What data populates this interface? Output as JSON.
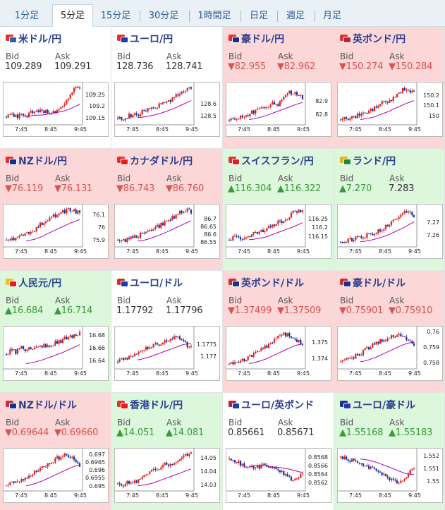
{
  "tabs": [
    {
      "label": "1分足",
      "active": false
    },
    {
      "label": "5分足",
      "active": true
    },
    {
      "label": "15分足",
      "active": false
    },
    {
      "label": "30分足",
      "active": false
    },
    {
      "label": "1時間足",
      "active": false
    },
    {
      "label": "日足",
      "active": false
    },
    {
      "label": "週足",
      "active": false
    },
    {
      "label": "月足",
      "active": false
    }
  ],
  "labels": {
    "bid": "Bid",
    "ask": "Ask"
  },
  "colors": {
    "up_bg": "#dcf7dc",
    "down_bg": "#fcd7d7",
    "up_text": "#3a9a3a",
    "down_text": "#d9534f",
    "bull_candle": "#e02020",
    "bear_candle": "#1a2f9a",
    "ma_line": "#b000b0"
  },
  "pairs": [
    {
      "name": "米ドル/円",
      "flag": "us-jp-flag-icon",
      "bg": "white",
      "bid": "109.289",
      "ask": "109.291",
      "bid_dir": "",
      "ask_dir": "",
      "chart_data": {
        "type": "candlestick",
        "x_ticks": [
          "7:45",
          "8:45",
          "9:45"
        ],
        "y_ticks": [
          "109.25",
          "109.2",
          "109.15"
        ],
        "ylim": [
          109.13,
          109.29
        ],
        "trend": [
          0.18,
          0.2,
          0.17,
          0.22,
          0.2,
          0.3,
          0.28,
          0.35,
          0.3,
          0.25,
          0.3,
          0.45,
          0.55,
          0.75,
          0.9,
          0.95
        ],
        "ma": [
          0.2,
          0.2,
          0.21,
          0.22,
          0.22,
          0.24,
          0.26,
          0.28,
          0.3,
          0.32,
          0.36,
          0.4,
          0.45,
          0.5
        ]
      }
    },
    {
      "name": "ユーロ/円",
      "flag": "eu-jp-flag-icon",
      "bg": "white",
      "bid": "128.736",
      "ask": "128.741",
      "bid_dir": "",
      "ask_dir": "",
      "chart_data": {
        "type": "candlestick",
        "x_ticks": [
          "7:45",
          "8:45",
          "9:45"
        ],
        "y_ticks": [
          "128.6",
          "128.5"
        ],
        "ylim": [
          128.44,
          128.76
        ],
        "trend": [
          0.15,
          0.12,
          0.18,
          0.22,
          0.2,
          0.3,
          0.35,
          0.4,
          0.45,
          0.5,
          0.55,
          0.65,
          0.75,
          0.85,
          0.9,
          0.95
        ],
        "ma": [
          0.15,
          0.16,
          0.18,
          0.2,
          0.22,
          0.25,
          0.28,
          0.32,
          0.36,
          0.4,
          0.45,
          0.5,
          0.55,
          0.6
        ]
      }
    },
    {
      "name": "豪ドル/円",
      "flag": "au-jp-flag-icon",
      "bg": "red",
      "bid": "▼82.955",
      "ask": "▼82.962",
      "bid_dir": "down",
      "ask_dir": "down",
      "chart_data": {
        "type": "candlestick",
        "x_ticks": [
          "7:45",
          "8:45",
          "9:45"
        ],
        "y_ticks": [
          "82.9",
          "82.8"
        ],
        "ylim": [
          82.74,
          83.02
        ],
        "trend": [
          0.1,
          0.12,
          0.15,
          0.2,
          0.25,
          0.3,
          0.35,
          0.4,
          0.45,
          0.55,
          0.5,
          0.6,
          0.85,
          0.8,
          0.75,
          0.7
        ],
        "ma": [
          0.1,
          0.12,
          0.14,
          0.17,
          0.2,
          0.24,
          0.28,
          0.32,
          0.36,
          0.4,
          0.44,
          0.48,
          0.52,
          0.55
        ]
      }
    },
    {
      "name": "英ポンド/円",
      "flag": "gb-jp-flag-icon",
      "bg": "red",
      "bid": "▼150.274",
      "ask": "▼150.284",
      "bid_dir": "down",
      "ask_dir": "down",
      "chart_data": {
        "type": "candlestick",
        "x_ticks": [
          "7:45",
          "8:45",
          "9:45"
        ],
        "y_ticks": [
          "150.2",
          "150.1",
          "150"
        ],
        "ylim": [
          149.93,
          150.3
        ],
        "trend": [
          0.1,
          0.12,
          0.15,
          0.2,
          0.22,
          0.3,
          0.35,
          0.4,
          0.5,
          0.55,
          0.6,
          0.7,
          0.8,
          0.9,
          0.85,
          0.8
        ],
        "ma": [
          0.1,
          0.12,
          0.14,
          0.16,
          0.2,
          0.24,
          0.28,
          0.32,
          0.38,
          0.42,
          0.47,
          0.52,
          0.56,
          0.6
        ]
      }
    },
    {
      "name": "NZドル/円",
      "flag": "nz-jp-flag-icon",
      "bg": "red",
      "bid": "▼76.119",
      "ask": "▼76.131",
      "bid_dir": "down",
      "ask_dir": "down",
      "chart_data": {
        "type": "candlestick",
        "x_ticks": [
          "7:45",
          "8:45",
          "9:45"
        ],
        "y_ticks": [
          "76.1",
          "76",
          "75.9"
        ],
        "ylim": [
          75.86,
          76.16
        ],
        "trend": [
          0.15,
          0.18,
          0.2,
          0.25,
          0.3,
          0.35,
          0.45,
          0.55,
          0.6,
          0.7,
          0.8,
          0.85,
          0.9,
          0.95,
          0.9,
          0.85
        ],
        "ma": [
          0.12,
          0.14,
          0.16,
          0.2,
          0.24,
          0.3,
          0.35,
          0.4,
          0.45,
          0.5,
          0.55,
          0.6,
          0.64,
          0.68
        ]
      }
    },
    {
      "name": "カナダドル/円",
      "flag": "ca-jp-flag-icon",
      "bg": "red",
      "bid": "▼86.743",
      "ask": "▼86.760",
      "bid_dir": "down",
      "ask_dir": "down",
      "chart_data": {
        "type": "candlestick",
        "x_ticks": [
          "7:45",
          "8:45",
          "9:45"
        ],
        "y_ticks": [
          "86.7",
          "86.65",
          "86.6",
          "86.55"
        ],
        "ylim": [
          86.53,
          86.78
        ],
        "trend": [
          0.15,
          0.12,
          0.18,
          0.2,
          0.25,
          0.3,
          0.35,
          0.45,
          0.5,
          0.55,
          0.65,
          0.7,
          0.8,
          0.9,
          0.95,
          0.85
        ],
        "ma": [
          0.12,
          0.13,
          0.15,
          0.18,
          0.22,
          0.26,
          0.3,
          0.35,
          0.4,
          0.45,
          0.5,
          0.55,
          0.6,
          0.65
        ]
      }
    },
    {
      "name": "スイスフラン/円",
      "flag": "ch-jp-flag-icon",
      "bg": "green",
      "bid": "▲116.304",
      "ask": "▲116.322",
      "bid_dir": "up",
      "ask_dir": "up",
      "chart_data": {
        "type": "candlestick",
        "x_ticks": [
          "7:45",
          "8:45",
          "9:45"
        ],
        "y_ticks": [
          "116.25",
          "116.2",
          "116.15"
        ],
        "ylim": [
          116.1,
          116.32
        ],
        "trend": [
          0.15,
          0.2,
          0.18,
          0.22,
          0.25,
          0.3,
          0.35,
          0.4,
          0.45,
          0.5,
          0.6,
          0.65,
          0.75,
          0.85,
          0.9,
          0.95
        ],
        "ma": [
          0.15,
          0.16,
          0.18,
          0.2,
          0.22,
          0.26,
          0.3,
          0.34,
          0.38,
          0.42,
          0.46,
          0.5,
          0.55,
          0.6
        ]
      }
    },
    {
      "name": "ランド/円",
      "flag": "za-jp-flag-icon",
      "bg": "green",
      "bid": "▲7.270",
      "ask": "7.283",
      "bid_dir": "up",
      "ask_dir": "",
      "chart_data": {
        "type": "candlestick",
        "x_ticks": [
          "7:45",
          "8:45",
          "9:45"
        ],
        "y_ticks": [
          "7.27",
          "7.26"
        ],
        "ylim": [
          7.252,
          7.282
        ],
        "trend": [
          0.1,
          0.12,
          0.15,
          0.18,
          0.2,
          0.25,
          0.3,
          0.35,
          0.4,
          0.5,
          0.55,
          0.65,
          0.75,
          0.85,
          0.9,
          0.8
        ],
        "ma": [
          0.1,
          0.11,
          0.13,
          0.15,
          0.18,
          0.21,
          0.25,
          0.29,
          0.34,
          0.39,
          0.44,
          0.5,
          0.56,
          0.62
        ]
      }
    },
    {
      "name": "人民元/円",
      "flag": "cn-jp-flag-icon",
      "bg": "green",
      "bid": "▲16.684",
      "ask": "▲16.714",
      "bid_dir": "up",
      "ask_dir": "up",
      "chart_data": {
        "type": "candlestick",
        "x_ticks": [
          "7:45",
          "8:45",
          "9:45"
        ],
        "y_ticks": [
          "16.68",
          "16.66",
          "16.64"
        ],
        "ylim": [
          16.63,
          16.69
        ],
        "trend": [
          0.35,
          0.5,
          0.4,
          0.55,
          0.45,
          0.5,
          0.55,
          0.6,
          0.55,
          0.6,
          0.65,
          0.7,
          0.75,
          0.8,
          0.85,
          0.9
        ],
        "ma": [
          0.1,
          0.12,
          0.14,
          0.17,
          0.2,
          0.24,
          0.28,
          0.32,
          0.36,
          0.4,
          0.45,
          0.5,
          0.55,
          0.6
        ]
      }
    },
    {
      "name": "ユーロ/ドル",
      "flag": "eu-us-flag-icon",
      "bg": "white",
      "bid": "1.17792",
      "ask": "1.17796",
      "bid_dir": "",
      "ask_dir": "",
      "chart_data": {
        "type": "candlestick",
        "x_ticks": [
          "7:45",
          "8:45",
          "9:45"
        ],
        "y_ticks": [
          "1.1775",
          "1.177"
        ],
        "ylim": [
          1.17655,
          1.17815
        ],
        "trend": [
          0.15,
          0.2,
          0.25,
          0.3,
          0.35,
          0.45,
          0.5,
          0.55,
          0.6,
          0.65,
          0.7,
          0.75,
          0.8,
          0.7,
          0.6,
          0.55
        ],
        "ma": [
          0.2,
          0.22,
          0.25,
          0.28,
          0.32,
          0.36,
          0.4,
          0.44,
          0.48,
          0.52,
          0.56,
          0.6,
          0.62,
          0.63
        ]
      }
    },
    {
      "name": "英ポンド/ドル",
      "flag": "gb-us-flag-icon",
      "bg": "red",
      "bid": "▼1.37499",
      "ask": "▼1.37509",
      "bid_dir": "down",
      "ask_dir": "down",
      "chart_data": {
        "type": "candlestick",
        "x_ticks": [
          "7:45",
          "8:45",
          "9:45"
        ],
        "y_ticks": [
          "1.375",
          "1.374"
        ],
        "ylim": [
          1.3735,
          1.3758
        ],
        "trend": [
          0.1,
          0.12,
          0.15,
          0.2,
          0.25,
          0.35,
          0.45,
          0.5,
          0.6,
          0.7,
          0.8,
          0.9,
          0.85,
          0.75,
          0.7,
          0.6
        ],
        "ma": [
          0.1,
          0.12,
          0.15,
          0.18,
          0.22,
          0.27,
          0.32,
          0.37,
          0.42,
          0.47,
          0.52,
          0.57,
          0.6,
          0.62
        ]
      }
    },
    {
      "name": "豪ドル/ドル",
      "flag": "au-us-flag-icon",
      "bg": "red",
      "bid": "▼0.75901",
      "ask": "▼0.75910",
      "bid_dir": "down",
      "ask_dir": "down",
      "chart_data": {
        "type": "candlestick",
        "x_ticks": [
          "7:45",
          "8:45",
          "9:45"
        ],
        "y_ticks": [
          "0.76",
          "0.759",
          "0.758"
        ],
        "ylim": [
          0.7577,
          0.7602
        ],
        "trend": [
          0.15,
          0.2,
          0.25,
          0.3,
          0.35,
          0.45,
          0.55,
          0.6,
          0.7,
          0.75,
          0.8,
          0.85,
          0.9,
          0.8,
          0.7,
          0.6
        ],
        "ma": [
          0.15,
          0.17,
          0.2,
          0.24,
          0.28,
          0.33,
          0.38,
          0.43,
          0.48,
          0.53,
          0.58,
          0.62,
          0.65,
          0.66
        ]
      }
    },
    {
      "name": "NZドル/ドル",
      "flag": "nz-us-flag-icon",
      "bg": "red",
      "bid": "▼0.69644",
      "ask": "▼0.69660",
      "bid_dir": "down",
      "ask_dir": "down",
      "chart_data": {
        "type": "candlestick",
        "x_ticks": [
          "7:45",
          "8:45",
          "9:45"
        ],
        "y_ticks": [
          "0.697",
          "0.6965",
          "0.696",
          "0.6955",
          "0.695"
        ],
        "ylim": [
          0.6948,
          0.6972
        ],
        "trend": [
          0.1,
          0.15,
          0.2,
          0.25,
          0.3,
          0.4,
          0.5,
          0.55,
          0.65,
          0.7,
          0.8,
          0.85,
          0.9,
          0.85,
          0.75,
          0.65
        ],
        "ma": [
          0.1,
          0.12,
          0.15,
          0.19,
          0.23,
          0.28,
          0.33,
          0.38,
          0.43,
          0.48,
          0.53,
          0.58,
          0.62,
          0.64
        ]
      }
    },
    {
      "name": "香港ドル/円",
      "flag": "hk-jp-flag-icon",
      "bg": "green",
      "bid": "▲14.051",
      "ask": "▲14.081",
      "bid_dir": "up",
      "ask_dir": "up",
      "chart_data": {
        "type": "candlestick",
        "x_ticks": [
          "7:45",
          "8:45",
          "9:45"
        ],
        "y_ticks": [
          "14.05",
          "14.04",
          "14.03"
        ],
        "ylim": [
          14.027,
          14.055
        ],
        "trend": [
          0.15,
          0.12,
          0.2,
          0.18,
          0.25,
          0.35,
          0.45,
          0.5,
          0.55,
          0.6,
          0.7,
          0.6,
          0.75,
          0.85,
          0.9,
          0.95
        ],
        "ma": [
          0.1,
          0.11,
          0.13,
          0.15,
          0.18,
          0.22,
          0.26,
          0.3,
          0.34,
          0.38,
          0.42,
          0.46,
          0.5,
          0.54
        ]
      }
    },
    {
      "name": "ユーロ/英ポンド",
      "flag": "eu-gb-flag-icon",
      "bg": "white",
      "bid": "0.85661",
      "ask": "0.85671",
      "bid_dir": "",
      "ask_dir": "",
      "chart_data": {
        "type": "candlestick",
        "x_ticks": [
          "7:45",
          "8:45",
          "9:45"
        ],
        "y_ticks": [
          "0.8568",
          "0.8566",
          "0.8564",
          "0.8562"
        ],
        "ylim": [
          0.85605,
          0.85695
        ],
        "trend": [
          0.8,
          0.75,
          0.7,
          0.65,
          0.6,
          0.55,
          0.6,
          0.65,
          0.6,
          0.55,
          0.5,
          0.45,
          0.3,
          0.25,
          0.35,
          0.4
        ],
        "ma": [
          0.6,
          0.62,
          0.63,
          0.63,
          0.62,
          0.6,
          0.59,
          0.58,
          0.57,
          0.55,
          0.53,
          0.5,
          0.47,
          0.45
        ]
      }
    },
    {
      "name": "ユーロ/豪ドル",
      "flag": "eu-au-flag-icon",
      "bg": "green",
      "bid": "▲1.55168",
      "ask": "▲1.55183",
      "bid_dir": "up",
      "ask_dir": "up",
      "chart_data": {
        "type": "candlestick",
        "x_ticks": [
          "7:45",
          "8:45",
          "9:45"
        ],
        "y_ticks": [
          "1.552",
          "1.551",
          "1.55"
        ],
        "ylim": [
          1.5494,
          1.5524
        ],
        "trend": [
          0.85,
          0.8,
          0.78,
          0.7,
          0.65,
          0.6,
          0.55,
          0.5,
          0.45,
          0.4,
          0.3,
          0.25,
          0.2,
          0.3,
          0.45,
          0.55
        ],
        "ma": [
          0.8,
          0.79,
          0.77,
          0.74,
          0.71,
          0.67,
          0.63,
          0.59,
          0.55,
          0.5,
          0.46,
          0.42,
          0.4,
          0.4
        ]
      }
    }
  ]
}
